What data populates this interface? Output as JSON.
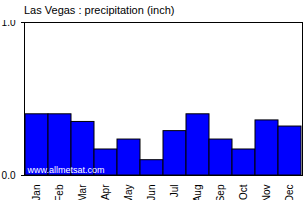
{
  "chart_data": {
    "type": "bar",
    "title": "Las Vegas : precipitation (inch)",
    "categories": [
      "Jan",
      "Feb",
      "Mar",
      "Apr",
      "May",
      "Jun",
      "Jul",
      "Aug",
      "Sep",
      "Oct",
      "Nov",
      "Dec"
    ],
    "values": [
      0.4,
      0.4,
      0.35,
      0.17,
      0.235,
      0.1,
      0.29,
      0.4,
      0.235,
      0.17,
      0.36,
      0.32
    ],
    "color": "#0000ff",
    "ylim": [
      0,
      1
    ],
    "yticks": [
      0,
      1
    ],
    "grid": false,
    "annotations": [
      "www.allmetsat.com"
    ]
  }
}
